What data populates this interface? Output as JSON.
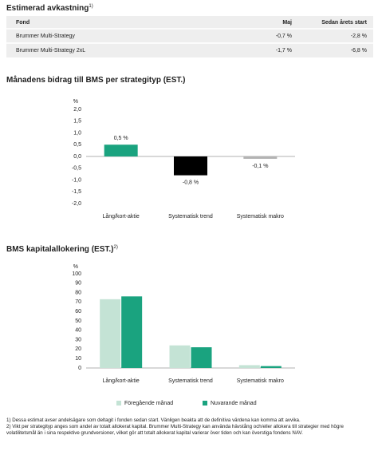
{
  "header": {
    "title": "Estimerad avkastning",
    "title_note": "1)"
  },
  "returns_table": {
    "columns": [
      "Fond",
      "Maj",
      "Sedan årets start"
    ],
    "rows": [
      [
        "Brummer Multi-Strategy",
        "-0,7 %",
        "-2,8 %"
      ],
      [
        "Brummer Multi-Strategy 2xL",
        "-1,7 %",
        "-6,8 %"
      ]
    ]
  },
  "chart_data": [
    {
      "type": "bar",
      "title": "Månadens bidrag till BMS per strategityp (EST.)",
      "y_label": "%",
      "categories": [
        "Lång/kort-aktie",
        "Systematisk trend",
        "Systematisk makro"
      ],
      "values": [
        0.5,
        -0.8,
        -0.1
      ],
      "value_labels": [
        "0,5 %",
        "-0,8 %",
        "-0,1 %"
      ],
      "colors": [
        "#1aa37f",
        "#000000",
        "#b3b3b3"
      ],
      "ylim": [
        -2,
        2
      ],
      "yticks": [
        {
          "value": 2,
          "label": "2,0"
        },
        {
          "value": 1.5,
          "label": "1,5"
        },
        {
          "value": 1,
          "label": "1,0"
        },
        {
          "value": 0.5,
          "label": "0,5"
        },
        {
          "value": 0,
          "label": "0,0"
        },
        {
          "value": -0.5,
          "label": "-0,5"
        },
        {
          "value": -1,
          "label": "-1,0"
        },
        {
          "value": -1.5,
          "label": "-1,5"
        },
        {
          "value": -2,
          "label": "-2,0"
        }
      ],
      "grid": false
    },
    {
      "type": "grouped_bar",
      "title": "BMS kapitalallokering (EST.)",
      "title_note": "2)",
      "y_label": "%",
      "categories": [
        "Lång/kort-aktie",
        "Systematisk trend",
        "Systematisk makro"
      ],
      "series": [
        {
          "name": "Föregående månad",
          "color": "#c4e3d5",
          "values": [
            73,
            24,
            3
          ]
        },
        {
          "name": "Nuvarande månad",
          "color": "#1aa37f",
          "values": [
            76,
            22,
            2
          ]
        }
      ],
      "ylim": [
        0,
        100
      ],
      "yticks": [
        0,
        10,
        20,
        30,
        40,
        50,
        60,
        70,
        80,
        90,
        100
      ],
      "grid": false,
      "legend": "bottom"
    }
  ],
  "footnotes": [
    "1) Dessa estimat avser andelsägare som deltagit i fonden sedan start. Vänligen beakta att de definitiva värdena kan komma att avvika.",
    "2) Vikt per strategityp anges som andel av totalt allokerat kapital. Brummer Multi-Strategy kan använda hävstång och/eller allokera till strategier med högre volatilitetsmål än i sina respektive grundversioner, vilket gör att totalt allokerat kapital varierar över tiden och kan överstiga fondens NAV."
  ]
}
